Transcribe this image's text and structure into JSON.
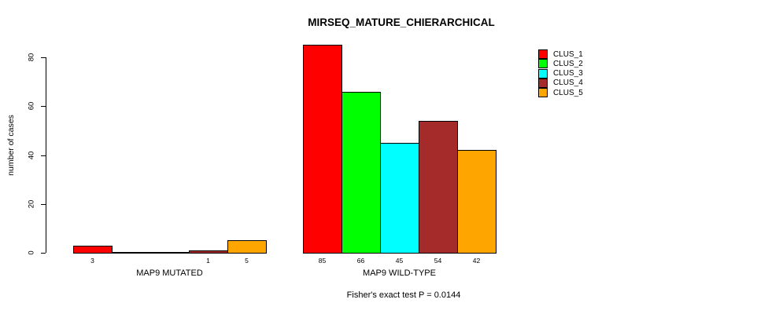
{
  "chart_data": {
    "type": "bar",
    "title": "MIRSEQ_MATURE_CHIERARCHICAL",
    "ylabel": "number of cases",
    "xlabel": "",
    "footer": "Fisher's exact test P = 0.0144",
    "ylim": [
      0,
      85
    ],
    "yticks": [
      0,
      20,
      40,
      60,
      80
    ],
    "grid": false,
    "legend_position": "top-right",
    "series": [
      {
        "name": "CLUS_1",
        "color": "#FF0000",
        "values": [
          3,
          85
        ]
      },
      {
        "name": "CLUS_2",
        "color": "#00FF00",
        "values": [
          0,
          66
        ]
      },
      {
        "name": "CLUS_3",
        "color": "#00FFFF",
        "values": [
          0,
          45
        ]
      },
      {
        "name": "CLUS_4",
        "color": "#A52A2A",
        "values": [
          1,
          54
        ]
      },
      {
        "name": "CLUS_5",
        "color": "#FFA500",
        "values": [
          5,
          42
        ]
      }
    ],
    "groups": [
      {
        "label": "MAP9 MUTATED",
        "values": [
          3,
          0,
          0,
          1,
          5
        ],
        "value_labels": [
          "3",
          "",
          "",
          "1",
          "5"
        ]
      },
      {
        "label": "MAP9 WILD-TYPE",
        "values": [
          85,
          66,
          45,
          54,
          42
        ],
        "value_labels": [
          "85",
          "66",
          "45",
          "54",
          "42"
        ]
      }
    ]
  }
}
